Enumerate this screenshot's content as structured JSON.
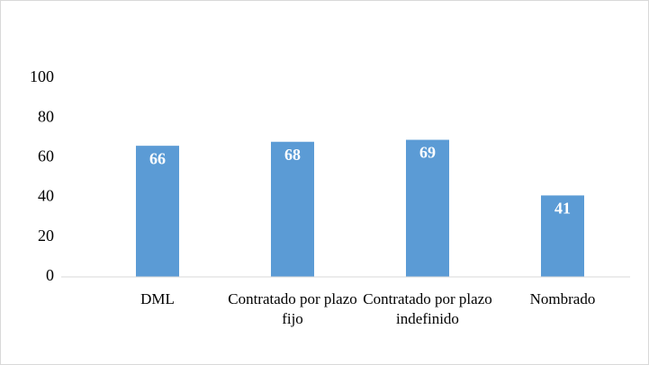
{
  "chart_data": {
    "type": "bar",
    "categories": [
      "DML",
      "Contratado por plazo fijo",
      "Contratado por plazo indefinido",
      "Nombrado"
    ],
    "values": [
      66,
      68,
      69,
      41
    ],
    "color": "#5b9bd5",
    "ylim": [
      0,
      100
    ],
    "yticks": [
      0,
      20,
      40,
      60,
      80,
      100
    ],
    "grid": false,
    "data_labels": true
  }
}
